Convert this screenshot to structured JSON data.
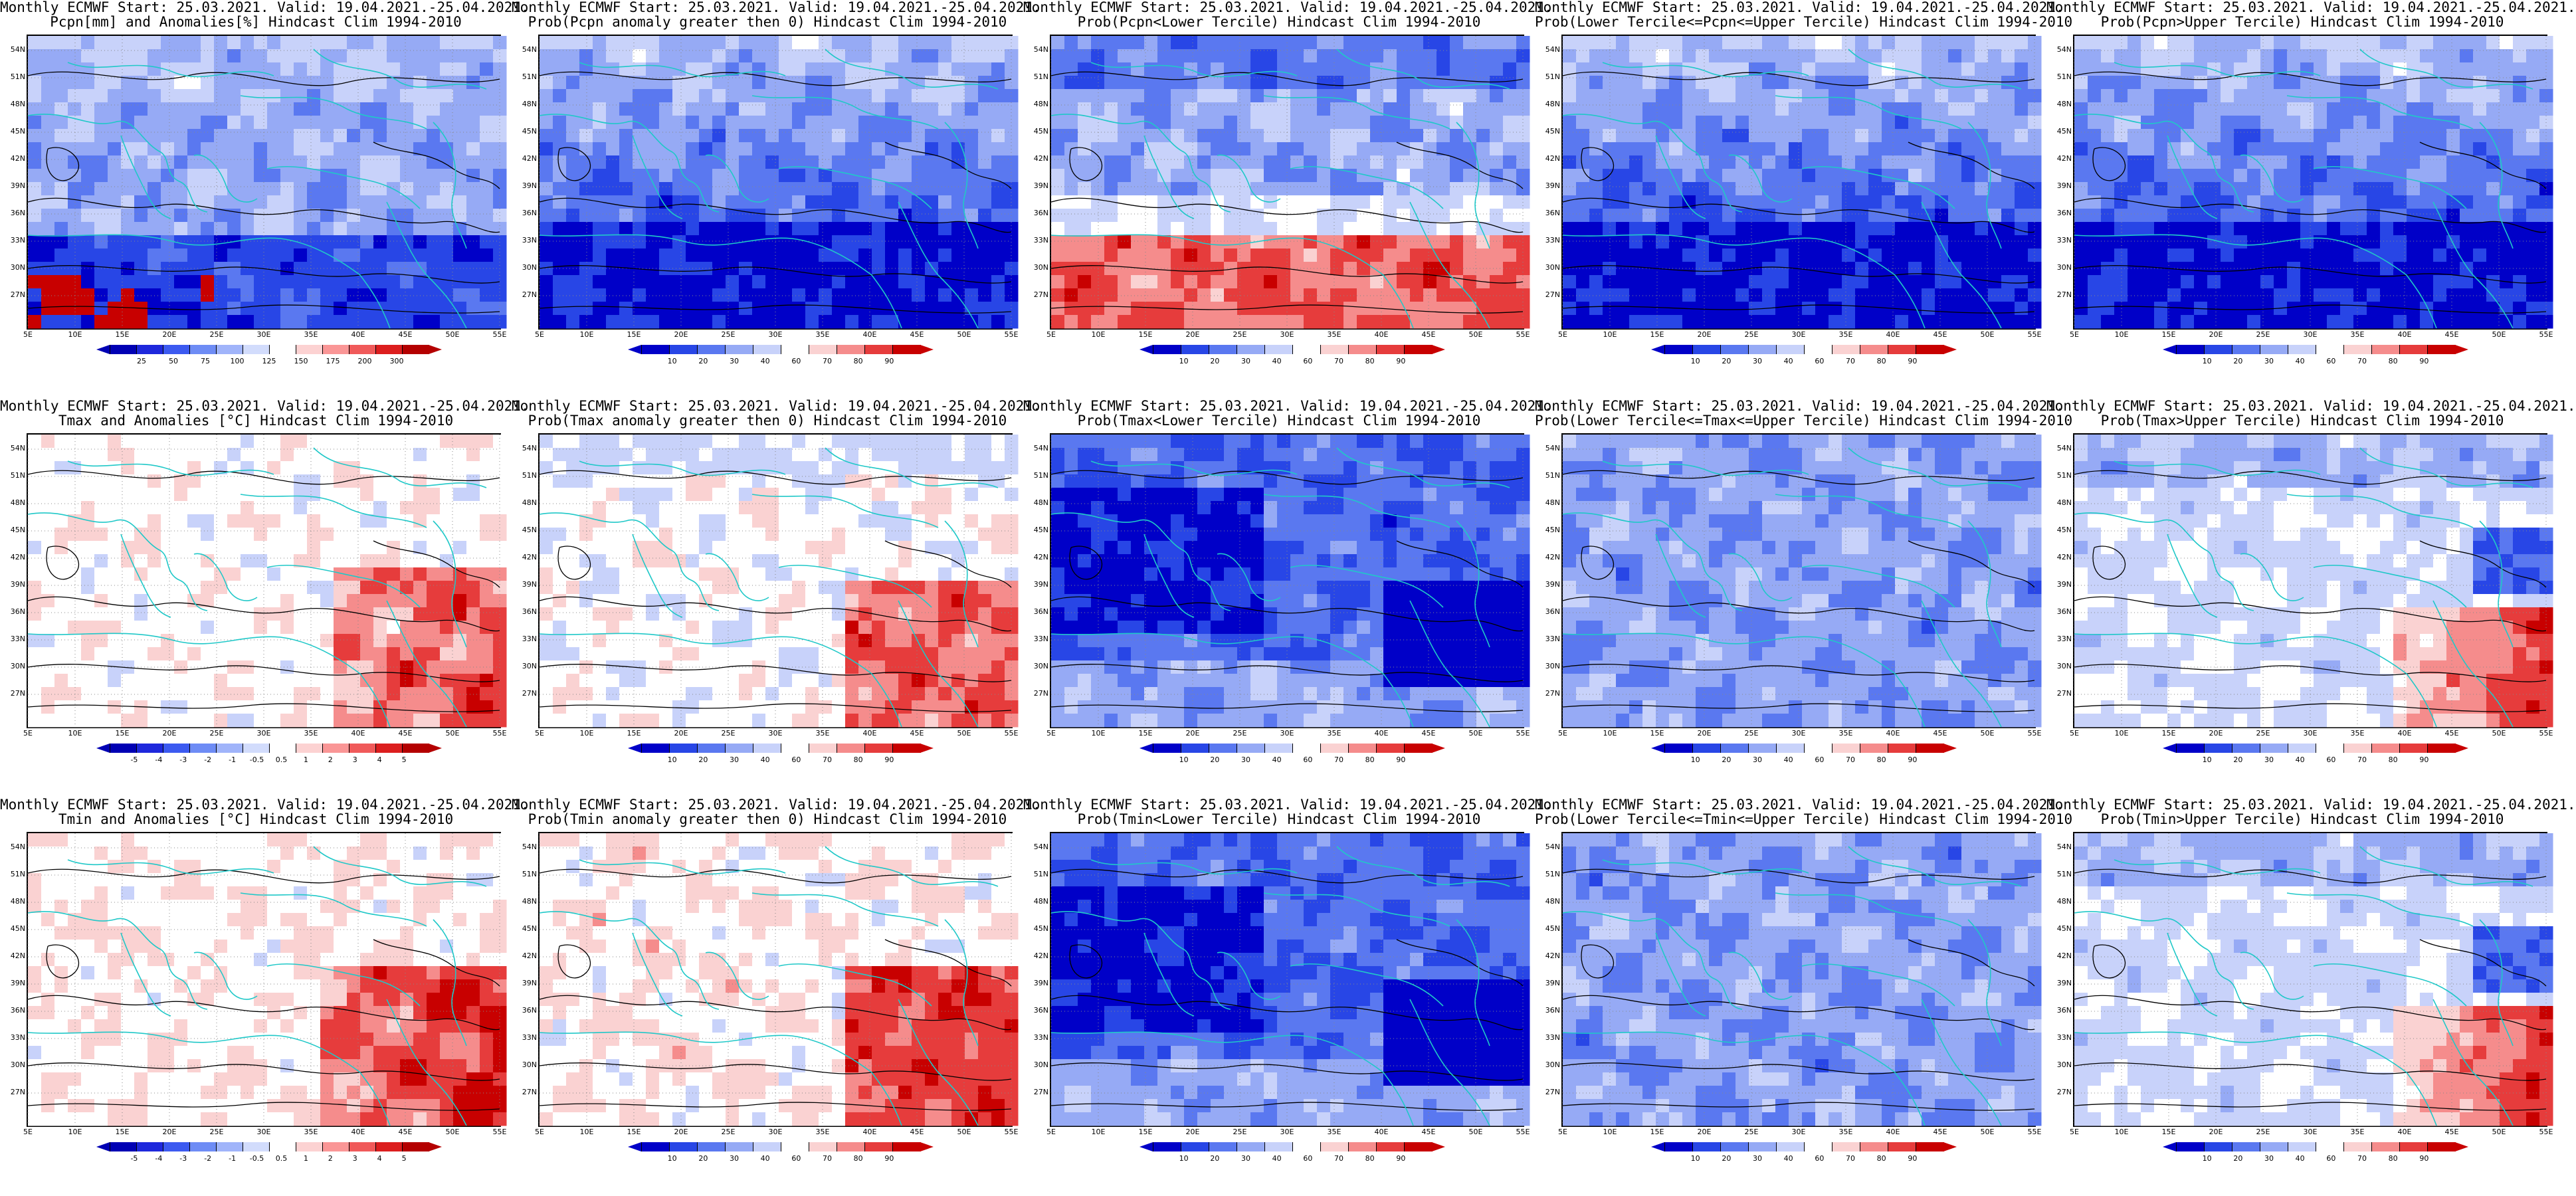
{
  "panels": [
    {
      "title1": "Monthly ECMWF Start: 25.03.2021. Valid: 19.04.2021.-25.04.2021.",
      "title2": "Pcpn[mm] and Anomalies[%] Hindcast Clim 1994-2010",
      "scheme": "anom_pcpn",
      "ticks": [
        "25",
        "50",
        "75",
        "100",
        "125",
        "150",
        "175",
        "200",
        "300"
      ]
    },
    {
      "title1": "Monthly ECMWF Start: 25.03.2021. Valid: 19.04.2021.-25.04.2021.",
      "title2": "Prob(Pcpn anomaly greater then 0) Hindcast Clim 1994-2010",
      "scheme": "prob_blue",
      "ticks": [
        "10",
        "20",
        "30",
        "40",
        "60",
        "70",
        "80",
        "90"
      ]
    },
    {
      "title1": "Monthly ECMWF Start: 25.03.2021. Valid: 19.04.2021.-25.04.2021.",
      "title2": "Prob(Pcpn<Lower Tercile) Hindcast Clim 1994-2010",
      "scheme": "prob_red_south",
      "ticks": [
        "10",
        "20",
        "30",
        "40",
        "60",
        "70",
        "80",
        "90"
      ]
    },
    {
      "title1": "Monthly ECMWF Start: 25.03.2021. Valid: 19.04.2021.-25.04.2021.",
      "title2": "Prob(Lower Tercile<=Pcpn<=Upper Tercile) Hindcast Clim 1994-2010",
      "scheme": "prob_blue",
      "ticks": [
        "10",
        "20",
        "30",
        "40",
        "60",
        "70",
        "80",
        "90"
      ]
    },
    {
      "title1": "Monthly ECMWF Start: 25.03.2021. Valid: 19.04.2021.-25.04.2021.",
      "title2": "Prob(Pcpn>Upper Tercile) Hindcast Clim 1994-2010",
      "scheme": "prob_blue",
      "ticks": [
        "10",
        "20",
        "30",
        "40",
        "60",
        "70",
        "80",
        "90"
      ]
    },
    {
      "title1": "Monthly ECMWF Start: 25.03.2021. Valid: 19.04.2021.-25.04.2021.",
      "title2": "Tmax and Anomalies [°C] Hindcast Clim 1994-2010",
      "scheme": "anom_temp",
      "ticks": [
        "-5",
        "-4",
        "-3",
        "-2",
        "-1",
        "-0.5",
        "0.5",
        "1",
        "2",
        "3",
        "4",
        "5"
      ]
    },
    {
      "title1": "Monthly ECMWF Start: 25.03.2021. Valid: 19.04.2021.-25.04.2021.",
      "title2": "Prob(Tmax anomaly greater then 0) Hindcast Clim 1994-2010",
      "scheme": "prob_red",
      "ticks": [
        "10",
        "20",
        "30",
        "40",
        "60",
        "70",
        "80",
        "90"
      ]
    },
    {
      "title1": "Monthly ECMWF Start: 25.03.2021. Valid: 19.04.2021.-25.04.2021.",
      "title2": "Prob(Tmax<Lower Tercile) Hindcast Clim 1994-2010",
      "scheme": "prob_deepblue",
      "ticks": [
        "10",
        "20",
        "30",
        "40",
        "60",
        "70",
        "80",
        "90"
      ]
    },
    {
      "title1": "Monthly ECMWF Start: 25.03.2021. Valid: 19.04.2021.-25.04.2021.",
      "title2": "Prob(Lower Tercile<=Tmax<=Upper Tercile) Hindcast Clim 1994-2010",
      "scheme": "prob_midblue",
      "ticks": [
        "10",
        "20",
        "30",
        "40",
        "60",
        "70",
        "80",
        "90"
      ]
    },
    {
      "title1": "Monthly ECMWF Start: 25.03.2021. Valid: 19.04.2021.-25.04.2021.",
      "title2": "Prob(Tmax>Upper Tercile) Hindcast Clim 1994-2010",
      "scheme": "prob_light_se",
      "ticks": [
        "10",
        "20",
        "30",
        "40",
        "60",
        "70",
        "80",
        "90"
      ]
    },
    {
      "title1": "Monthly ECMWF Start: 25.03.2021. Valid: 19.04.2021.-25.04.2021.",
      "title2": "Tmin and Anomalies [°C] Hindcast Clim 1994-2010",
      "scheme": "anom_temp2",
      "ticks": [
        "-5",
        "-4",
        "-3",
        "-2",
        "-1",
        "-0.5",
        "0.5",
        "1",
        "2",
        "3",
        "4",
        "5"
      ]
    },
    {
      "title1": "Monthly ECMWF Start: 25.03.2021. Valid: 19.04.2021.-25.04.2021.",
      "title2": "Prob(Tmin anomaly greater then 0) Hindcast Clim 1994-2010",
      "scheme": "prob_red2",
      "ticks": [
        "10",
        "20",
        "30",
        "40",
        "60",
        "70",
        "80",
        "90"
      ]
    },
    {
      "title1": "Monthly ECMWF Start: 25.03.2021. Valid: 19.04.2021.-25.04.2021.",
      "title2": "Prob(Tmin<Lower Tercile) Hindcast Clim 1994-2010",
      "scheme": "prob_deepblue",
      "ticks": [
        "10",
        "20",
        "30",
        "40",
        "60",
        "70",
        "80",
        "90"
      ]
    },
    {
      "title1": "Monthly ECMWF Start: 25.03.2021. Valid: 19.04.2021.-25.04.2021.",
      "title2": "Prob(Lower Tercile<=Tmin<=Upper Tercile) Hindcast Clim 1994-2010",
      "scheme": "prob_midblue",
      "ticks": [
        "10",
        "20",
        "30",
        "40",
        "60",
        "70",
        "80",
        "90"
      ]
    },
    {
      "title1": "Monthly ECMWF Start: 25.03.2021. Valid: 19.04.2021.-25.04.2021.",
      "title2": "Prob(Tmin>Upper Tercile) Hindcast Clim 1994-2010",
      "scheme": "prob_light_se",
      "ticks": [
        "10",
        "20",
        "30",
        "40",
        "60",
        "70",
        "80",
        "90"
      ]
    }
  ],
  "lat_labels": [
    "54N",
    "51N",
    "48N",
    "45N",
    "42N",
    "39N",
    "36N",
    "33N",
    "30N",
    "27N"
  ],
  "lon_labels": [
    "5E",
    "10E",
    "15E",
    "20E",
    "25E",
    "30E",
    "35E",
    "40E",
    "45E",
    "50E",
    "55E"
  ],
  "colors": {
    "blue_ramp": [
      "#0000b4",
      "#1e28dc",
      "#3c5af0",
      "#6e8cf5",
      "#a0b4fa",
      "#d2dcfc",
      "#ffffff",
      "#fcd2d2",
      "#fa9696",
      "#f05a5a",
      "#dc1e1e",
      "#b40000"
    ],
    "prob_ramp": [
      "#0000c8",
      "#2846e6",
      "#5a78f0",
      "#96aaf5",
      "#c8d2fa",
      "#ffffff",
      "#fad2d2",
      "#f58c8c",
      "#e63c3c",
      "#c80000"
    ],
    "coast": "#20c8c8",
    "contour": "#000000"
  }
}
